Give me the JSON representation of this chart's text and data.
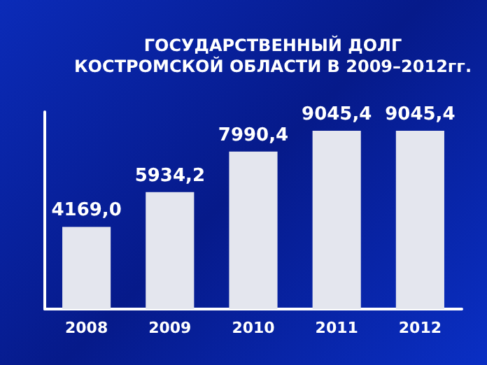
{
  "chart_data": {
    "type": "bar",
    "title": "ГОСУДАРСТВЕННЫЙ ДОЛГ\nКОСТРОМСКОЙ ОБЛАСТИ В 2009–2012гг.",
    "categories": [
      "2008",
      "2009",
      "2010",
      "2011",
      "2012"
    ],
    "values": [
      4169.0,
      5934.2,
      7990.4,
      9045.4,
      9045.4
    ],
    "value_labels": [
      "4169,0",
      "5934,2",
      "7990,4",
      "9045,4",
      "9045,4"
    ],
    "color": "#e4e6ee",
    "tick_labels": "x",
    "grid": false
  }
}
